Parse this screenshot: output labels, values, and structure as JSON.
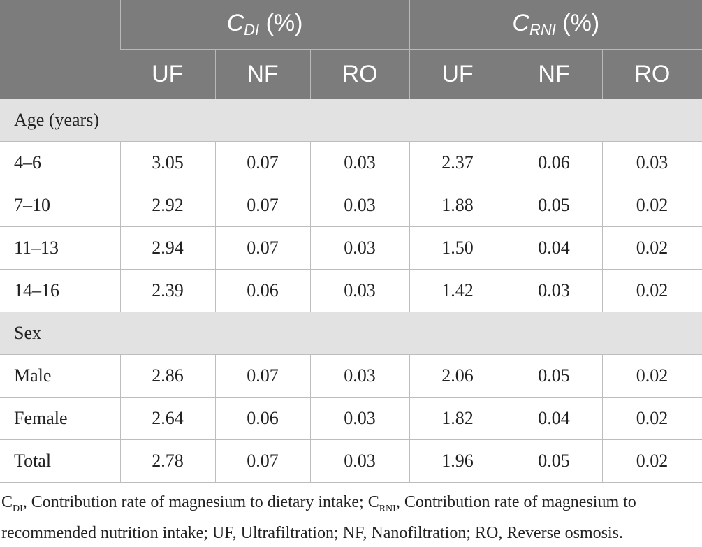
{
  "header": {
    "group1": {
      "symbol": "C",
      "sub": "DI",
      "unit": "(%)"
    },
    "group2": {
      "symbol": "C",
      "sub": "RNI",
      "unit": "(%)"
    },
    "columns": [
      "UF",
      "NF",
      "RO",
      "UF",
      "NF",
      "RO"
    ]
  },
  "sections": [
    {
      "title": "Age (years)",
      "rows": [
        {
          "label": "4–6",
          "values": [
            "3.05",
            "0.07",
            "0.03",
            "2.37",
            "0.06",
            "0.03"
          ]
        },
        {
          "label": "7–10",
          "values": [
            "2.92",
            "0.07",
            "0.03",
            "1.88",
            "0.05",
            "0.02"
          ]
        },
        {
          "label": "11–13",
          "values": [
            "2.94",
            "0.07",
            "0.03",
            "1.50",
            "0.04",
            "0.02"
          ]
        },
        {
          "label": "14–16",
          "values": [
            "2.39",
            "0.06",
            "0.03",
            "1.42",
            "0.03",
            "0.02"
          ]
        }
      ]
    },
    {
      "title": "Sex",
      "rows": [
        {
          "label": "Male",
          "values": [
            "2.86",
            "0.07",
            "0.03",
            "2.06",
            "0.05",
            "0.02"
          ]
        },
        {
          "label": "Female",
          "values": [
            "2.64",
            "0.06",
            "0.03",
            "1.82",
            "0.04",
            "0.02"
          ]
        },
        {
          "label": "Total",
          "values": [
            "2.78",
            "0.07",
            "0.03",
            "1.96",
            "0.05",
            "0.02"
          ]
        }
      ]
    }
  ],
  "footnote": {
    "c_di_symbol": "C",
    "c_di_sub": "DI",
    "c_di_text": ", Contribution rate of magnesium to dietary intake; ",
    "c_rni_symbol": "C",
    "c_rni_sub": "RNI",
    "c_rni_text": ", Contribution rate of magnesium to recommended nutrition intake; UF, Ultrafiltration; NF, Nanofiltration; RO, Reverse osmosis."
  }
}
